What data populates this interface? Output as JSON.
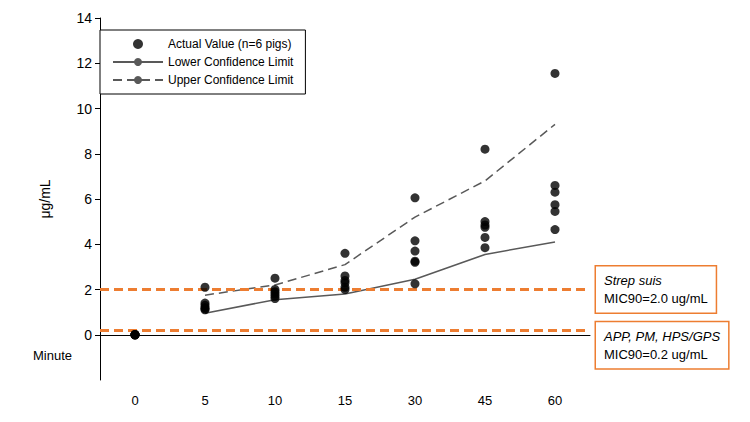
{
  "chart_data": {
    "type": "scatter",
    "x_label": "Minute",
    "y_label": "μg/mL",
    "categories": [
      0,
      5,
      10,
      15,
      30,
      45,
      60
    ],
    "ylim": [
      -2,
      14
    ],
    "yticks": [
      0,
      2,
      4,
      6,
      8,
      10,
      12,
      14
    ],
    "grid": false,
    "legend": "upper left",
    "series": [
      {
        "name": "Actual Value (n=6 pigs)",
        "type": "scatter",
        "marker": "circle",
        "color": "#000000",
        "x": [
          0,
          0,
          0,
          0,
          0,
          0,
          5,
          5,
          5,
          5,
          5,
          5,
          10,
          10,
          10,
          10,
          10,
          10,
          15,
          15,
          15,
          15,
          15,
          15,
          30,
          30,
          30,
          30,
          30,
          30,
          45,
          45,
          45,
          45,
          45,
          45,
          60,
          60,
          60,
          60,
          60,
          60
        ],
        "values": [
          0,
          0,
          0,
          0,
          0,
          0,
          2.1,
          1.4,
          1.3,
          1.2,
          1.15,
          1.1,
          2.5,
          2.0,
          1.9,
          1.8,
          1.7,
          1.6,
          3.6,
          2.6,
          2.4,
          2.3,
          2.1,
          2.0,
          6.05,
          4.15,
          3.7,
          3.25,
          3.2,
          2.25,
          8.2,
          5.0,
          4.85,
          4.75,
          4.3,
          3.85,
          11.55,
          6.6,
          6.3,
          5.75,
          5.45,
          4.65
        ]
      },
      {
        "name": "Lower Confidence Limit",
        "type": "line",
        "line_style": "solid",
        "color": "#595959",
        "values": [
          null,
          0.95,
          1.55,
          1.8,
          2.45,
          3.55,
          4.1
        ]
      },
      {
        "name": "Upper Confidence Limit",
        "type": "line",
        "line_style": "dashed",
        "color": "#595959",
        "values": [
          null,
          1.75,
          2.2,
          3.1,
          5.2,
          6.8,
          9.3
        ]
      }
    ],
    "reference_lines": [
      {
        "value": 2.0,
        "label": [
          "Strep suis",
          "MIC90=2.0 ug/mL"
        ],
        "color": "#ed7d31",
        "line_style": "dashed"
      },
      {
        "value": 0.2,
        "label": [
          "APP, PM, HPS/GPS",
          "MIC90=0.2 ug/mL"
        ],
        "color": "#ed7d31",
        "line_style": "dashed"
      }
    ]
  }
}
